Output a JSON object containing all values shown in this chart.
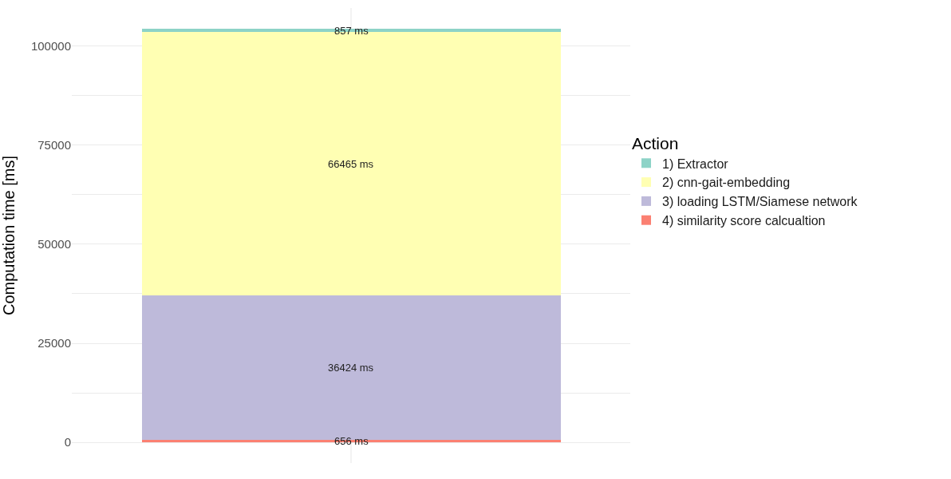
{
  "chart_data": {
    "type": "bar",
    "stacked": true,
    "categories": [
      null
    ],
    "ylabel": "Computation time [ms]",
    "legend_title": "Action",
    "legend": "right",
    "grid": true,
    "ylim": [
      -5220,
      109622
    ],
    "yticks": [
      0,
      {
        "value": 12500,
        "label": null
      },
      25000,
      {
        "value": 37500,
        "label": null
      },
      50000,
      {
        "value": 62500,
        "label": null
      },
      75000,
      {
        "value": 87500,
        "label": null
      },
      100000
    ],
    "series": [
      {
        "name": "4) similarity score calcualtion",
        "color": "#fb8072",
        "values": [
          656
        ],
        "value_labels": [
          "656 ms"
        ]
      },
      {
        "name": "3) loading LSTM/Siamese network",
        "color": "#bebada",
        "values": [
          36424
        ],
        "value_labels": [
          "36424 ms"
        ]
      },
      {
        "name": "2) cnn-gait-embedding",
        "color": "#ffffb3",
        "values": [
          66465
        ],
        "value_labels": [
          "66465 ms"
        ]
      },
      {
        "name": "1) Extractor",
        "color": "#8dd3c7",
        "values": [
          857
        ],
        "value_labels": [
          "857 ms"
        ]
      }
    ]
  }
}
